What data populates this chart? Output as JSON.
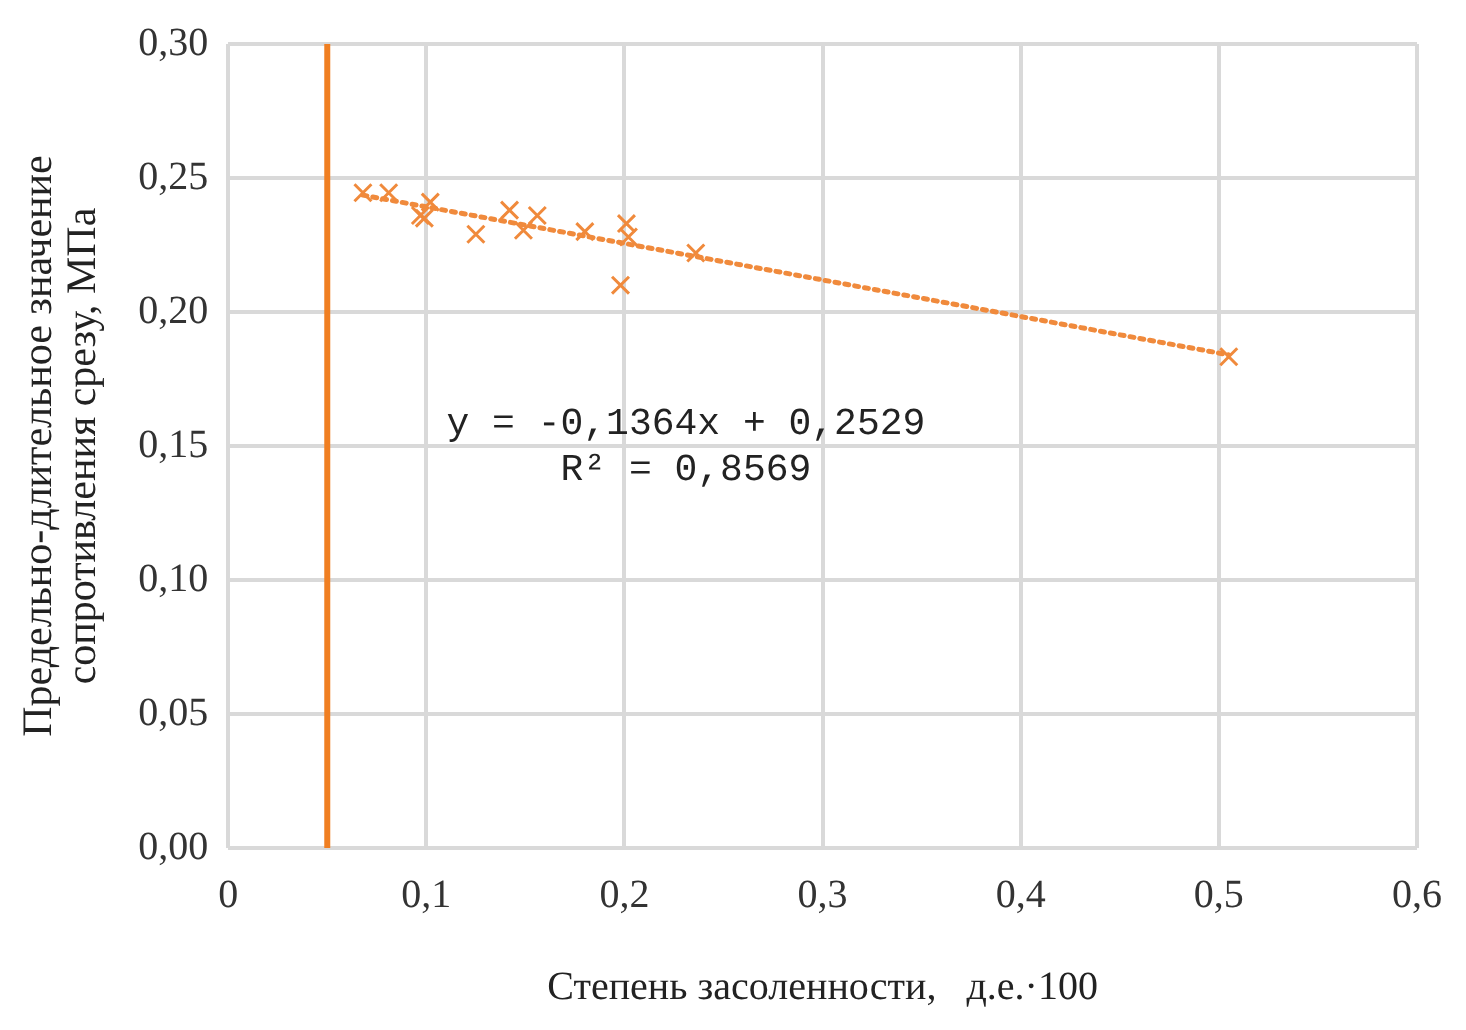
{
  "chart_data": {
    "type": "scatter",
    "xlabel": "Степень засоленности,   д.е.·100",
    "ylabel": [
      "Предельно-длительное значение",
      "сопротивления срезу, МПа"
    ],
    "series": [
      {
        "color": "#f08a3c",
        "marker": "cross",
        "x": [
          0.068,
          0.081,
          0.102,
          0.097,
          0.099,
          0.125,
          0.142,
          0.149,
          0.156,
          0.18,
          0.201,
          0.202,
          0.198,
          0.236,
          0.505
        ],
        "values": [
          0.2445,
          0.2445,
          0.241,
          0.236,
          0.235,
          0.229,
          0.238,
          0.2305,
          0.236,
          0.23,
          0.233,
          0.228,
          0.21,
          0.222,
          0.1833
        ]
      },
      {
        "type": "line",
        "color": "#f08a3c",
        "marker": "none",
        "line_style": "dotted",
        "x": [
          0.068,
          0.505
        ],
        "values": [
          0.2436,
          0.184
        ]
      }
    ],
    "ref_lines": [
      {
        "axis": "x",
        "value": 0.05,
        "color": "#f07f22",
        "line_style": "solid"
      }
    ],
    "annotations": [
      "y = -0,1364x + 0,2529",
      "R² = 0,8569"
    ],
    "xlim": [
      0,
      0.6
    ],
    "xticks": [
      0,
      {
        "value": 0.1,
        "label": "0,1"
      },
      {
        "value": 0.2,
        "label": "0,2"
      },
      {
        "value": 0.3,
        "label": "0,3"
      },
      {
        "value": 0.4,
        "label": "0,4"
      },
      {
        "value": 0.5,
        "label": "0,5"
      },
      {
        "value": 0.6,
        "label": "0,6"
      }
    ],
    "ylim": [
      0,
      0.3
    ],
    "yticks": [
      {
        "value": 0,
        "label": "0,00"
      },
      {
        "value": 0.05,
        "label": "0,05"
      },
      {
        "value": 0.1,
        "label": "0,10"
      },
      {
        "value": 0.15,
        "label": "0,15"
      },
      {
        "value": 0.2,
        "label": "0,20"
      },
      {
        "value": 0.25,
        "label": "0,25"
      },
      {
        "value": 0.3,
        "label": "0,30"
      }
    ],
    "grid": true,
    "legend": false
  }
}
